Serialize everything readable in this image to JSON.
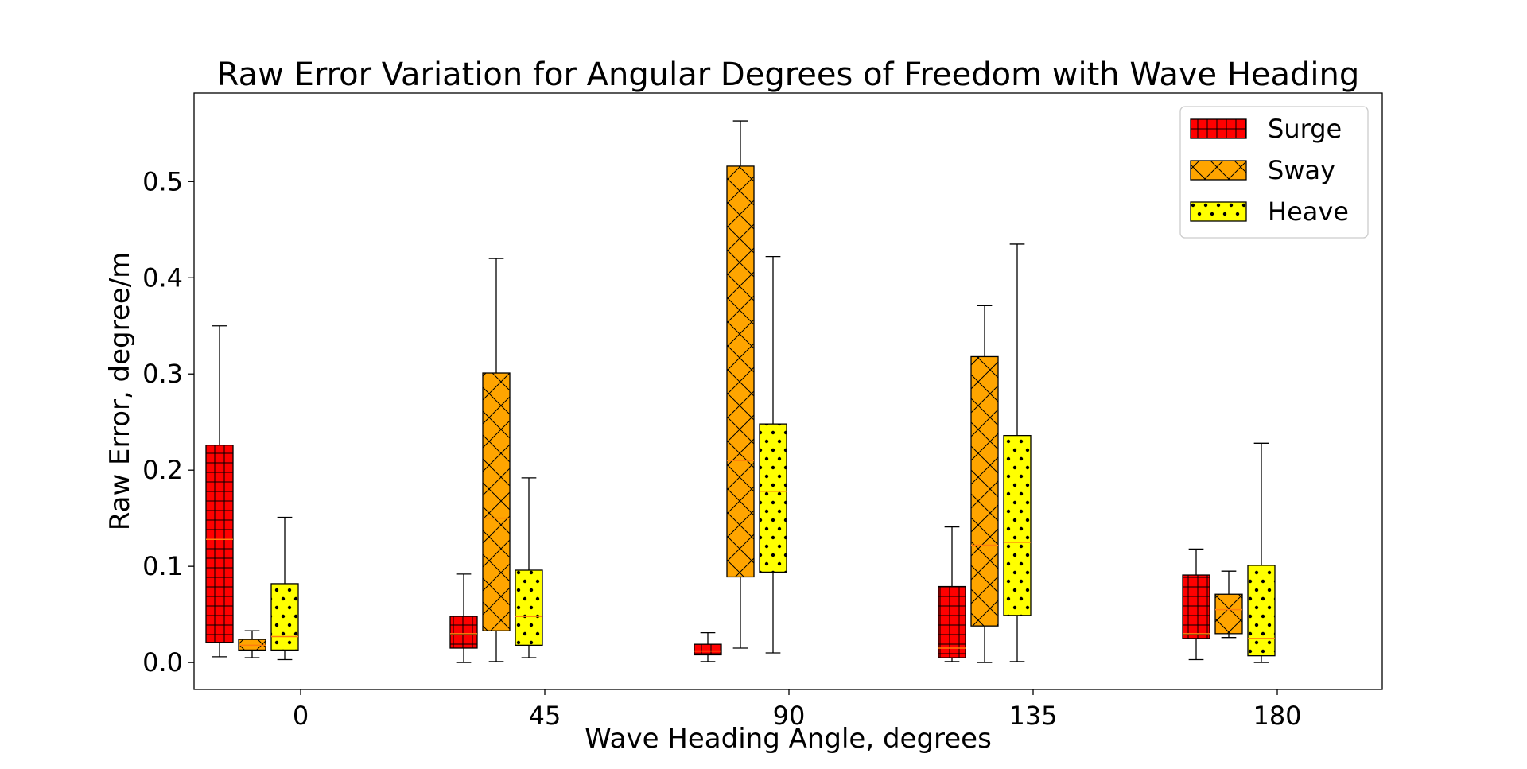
{
  "chart_data": {
    "type": "box",
    "title": "Raw Error Variation for Angular Degrees of Freedom with Wave Heading",
    "xlabel": "Wave Heading Angle, degrees",
    "ylabel": "Raw Error, degree/m",
    "categories": [
      "0",
      "45",
      "90",
      "135",
      "180"
    ],
    "y_ticks": [
      "0.0",
      "0.1",
      "0.2",
      "0.3",
      "0.4",
      "0.5"
    ],
    "ylim": [
      -0.028,
      0.592
    ],
    "legend_position": "top-right",
    "grid": false,
    "series": [
      {
        "name": "Surge",
        "color": "#ff0000",
        "hatch": "grid",
        "boxes": [
          {
            "whislo": 0.006,
            "q1": 0.021,
            "med": 0.128,
            "q3": 0.226,
            "whishi": 0.35
          },
          {
            "whislo": 0.0,
            "q1": 0.015,
            "med": 0.03,
            "q3": 0.048,
            "whishi": 0.092
          },
          {
            "whislo": 0.001,
            "q1": 0.008,
            "med": 0.012,
            "q3": 0.019,
            "whishi": 0.031
          },
          {
            "whislo": 0.001,
            "q1": 0.005,
            "med": 0.015,
            "q3": 0.079,
            "whishi": 0.141
          },
          {
            "whislo": 0.003,
            "q1": 0.025,
            "med": 0.03,
            "q3": 0.091,
            "whishi": 0.118
          }
        ]
      },
      {
        "name": "Sway",
        "color": "#ffa500",
        "hatch": "cross",
        "boxes": [
          {
            "whislo": 0.005,
            "q1": 0.013,
            "med": 0.018,
            "q3": 0.024,
            "whishi": 0.033
          },
          {
            "whislo": 0.001,
            "q1": 0.033,
            "med": 0.15,
            "q3": 0.301,
            "whishi": 0.42
          },
          {
            "whislo": 0.015,
            "q1": 0.089,
            "med": 0.21,
            "q3": 0.516,
            "whishi": 0.563
          },
          {
            "whislo": 0.0,
            "q1": 0.038,
            "med": 0.122,
            "q3": 0.318,
            "whishi": 0.371
          },
          {
            "whislo": 0.026,
            "q1": 0.03,
            "med": 0.055,
            "q3": 0.071,
            "whishi": 0.095
          }
        ]
      },
      {
        "name": "Heave",
        "color": "#ffff00",
        "hatch": "dots",
        "boxes": [
          {
            "whislo": 0.003,
            "q1": 0.013,
            "med": 0.027,
            "q3": 0.082,
            "whishi": 0.151
          },
          {
            "whislo": 0.005,
            "q1": 0.018,
            "med": 0.048,
            "q3": 0.096,
            "whishi": 0.192
          },
          {
            "whislo": 0.01,
            "q1": 0.094,
            "med": 0.178,
            "q3": 0.248,
            "whishi": 0.422
          },
          {
            "whislo": 0.001,
            "q1": 0.049,
            "med": 0.125,
            "q3": 0.236,
            "whishi": 0.435
          },
          {
            "whislo": 0.0,
            "q1": 0.007,
            "med": 0.025,
            "q3": 0.101,
            "whishi": 0.228
          }
        ]
      }
    ]
  }
}
